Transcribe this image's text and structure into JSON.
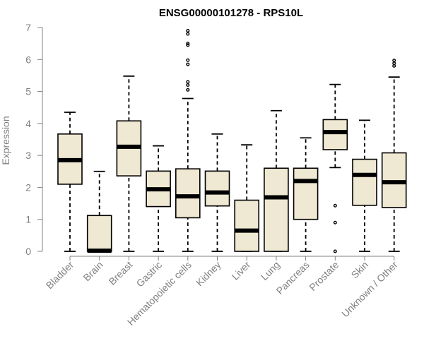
{
  "chart_data": {
    "type": "boxplot",
    "title": "ENSG00000101278 - RPS10L",
    "ylabel": "Expression",
    "xlabel": "",
    "ylim": [
      0,
      7
    ],
    "yticks": [
      0,
      1,
      2,
      3,
      4,
      5,
      6,
      7
    ],
    "grid": false,
    "legend": "none",
    "colors": {
      "box_fill": "#efe8d2",
      "box_stroke": "#000000",
      "axis": "#808080",
      "text": "#808080"
    },
    "categories": [
      "Bladder",
      "Brain",
      "Breast",
      "Gastric",
      "Hematopoietic cells",
      "Kidney",
      "Liver",
      "Lung",
      "Pancreas",
      "Prostate",
      "Skin",
      "Unknown / Other"
    ],
    "boxes": [
      {
        "min": 0,
        "q1": 2.1,
        "median": 2.85,
        "q3": 3.67,
        "max": 4.35,
        "outliers": []
      },
      {
        "min": 0,
        "q1": 0,
        "median": 0.02,
        "q3": 1.12,
        "max": 2.5,
        "outliers": []
      },
      {
        "min": 0,
        "q1": 2.36,
        "median": 3.27,
        "q3": 4.08,
        "max": 5.48,
        "outliers": []
      },
      {
        "min": 0,
        "q1": 1.4,
        "median": 1.94,
        "q3": 2.51,
        "max": 3.3,
        "outliers": []
      },
      {
        "min": 0,
        "q1": 1.05,
        "median": 1.72,
        "q3": 2.58,
        "max": 4.78,
        "outliers": [
          5.05,
          5.2,
          5.3,
          5.85,
          5.98,
          6.45,
          6.5,
          6.8,
          6.9
        ]
      },
      {
        "min": 0,
        "q1": 1.42,
        "median": 1.84,
        "q3": 2.51,
        "max": 3.67,
        "outliers": []
      },
      {
        "min": 0,
        "q1": 0,
        "median": 0.65,
        "q3": 1.6,
        "max": 3.33,
        "outliers": []
      },
      {
        "min": 0,
        "q1": 0,
        "median": 1.69,
        "q3": 2.6,
        "max": 4.4,
        "outliers": []
      },
      {
        "min": 0,
        "q1": 1.0,
        "median": 2.2,
        "q3": 2.6,
        "max": 3.55,
        "outliers": []
      },
      {
        "min": 2.62,
        "q1": 3.18,
        "median": 3.73,
        "q3": 4.12,
        "max": 5.22,
        "outliers": [
          0,
          0.9,
          1.43
        ]
      },
      {
        "min": 0,
        "q1": 1.44,
        "median": 2.39,
        "q3": 2.88,
        "max": 4.1,
        "outliers": []
      },
      {
        "min": 0,
        "q1": 1.37,
        "median": 2.16,
        "q3": 3.08,
        "max": 5.45,
        "outliers": [
          5.8,
          5.88,
          5.97
        ]
      }
    ]
  }
}
